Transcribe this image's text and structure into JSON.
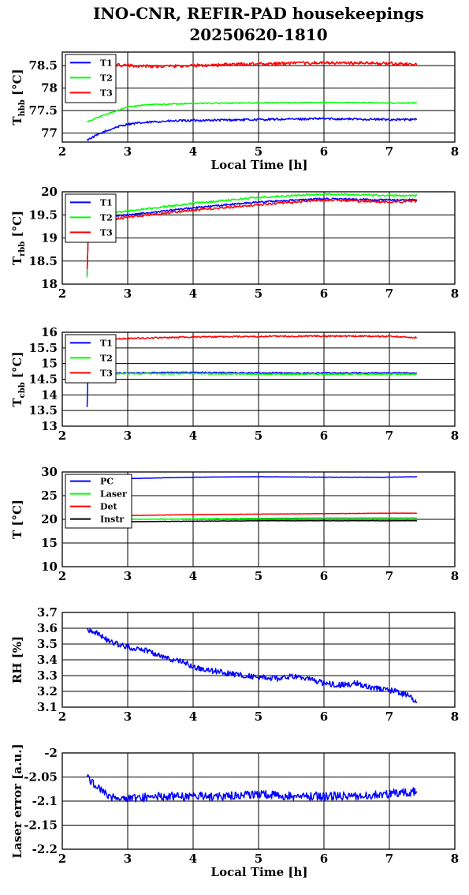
{
  "title": {
    "line1": "INO-CNR, REFIR-PAD housekeepings",
    "line2": "20250620-1810"
  },
  "chart_data": [
    {
      "type": "line",
      "ylabel_main": "T",
      "ylabel_sub": "hbb",
      "ylabel_unit": " [°C]",
      "xlabel": "Local Time [h]",
      "xlim": [
        2,
        8
      ],
      "ylim": [
        76.8,
        78.8
      ],
      "xticks": [
        "2",
        "3",
        "4",
        "5",
        "6",
        "7",
        "8"
      ],
      "yticks": [
        {
          "v": 77,
          "label": "77"
        },
        {
          "v": 77.5,
          "label": "77.5"
        },
        {
          "v": 78,
          "label": "78"
        },
        {
          "v": 78.5,
          "label": "78.5"
        }
      ],
      "grid": true,
      "legend": "top-left",
      "series": [
        {
          "name": "T1",
          "color": "#0000ff",
          "x": [
            2.38,
            2.6,
            2.8,
            3.0,
            3.5,
            4.0,
            5.0,
            6.0,
            7.0,
            7.42
          ],
          "y": [
            76.85,
            77.0,
            77.12,
            77.2,
            77.26,
            77.28,
            77.3,
            77.32,
            77.3,
            77.3
          ],
          "noise": 0.025
        },
        {
          "name": "T2",
          "color": "#00ff00",
          "x": [
            2.38,
            2.6,
            2.8,
            3.0,
            3.3,
            4.0,
            5.0,
            6.0,
            7.0,
            7.42
          ],
          "y": [
            77.25,
            77.38,
            77.48,
            77.58,
            77.63,
            77.66,
            77.67,
            77.68,
            77.67,
            77.67
          ],
          "noise": 0.012
        },
        {
          "name": "T3",
          "color": "#ff0000",
          "x": [
            2.5,
            2.8,
            3.0,
            3.5,
            4.0,
            5.0,
            6.0,
            7.0,
            7.42
          ],
          "y": [
            78.55,
            78.52,
            78.5,
            78.48,
            78.5,
            78.54,
            78.56,
            78.55,
            78.52
          ],
          "noise": 0.035
        }
      ]
    },
    {
      "type": "line",
      "ylabel_main": "T",
      "ylabel_sub": "rbb",
      "ylabel_unit": " [°C]",
      "xlabel": "",
      "xlim": [
        2,
        8
      ],
      "ylim": [
        18,
        20
      ],
      "xticks": [
        "2",
        "3",
        "4",
        "5",
        "6",
        "7",
        "8"
      ],
      "yticks": [
        {
          "v": 18,
          "label": "18"
        },
        {
          "v": 18.5,
          "label": "18.5"
        },
        {
          "v": 19,
          "label": "19"
        },
        {
          "v": 19.5,
          "label": "19.5"
        },
        {
          "v": 20,
          "label": "20"
        }
      ],
      "grid": true,
      "legend": "top-left",
      "series": [
        {
          "name": "T1",
          "color": "#0000ff",
          "x": [
            2.38,
            2.4,
            2.42,
            2.7,
            3.0,
            4.0,
            5.0,
            6.0,
            7.0,
            7.42
          ],
          "y": [
            18.2,
            19.3,
            19.42,
            19.45,
            19.5,
            19.65,
            19.78,
            19.85,
            19.82,
            19.83
          ],
          "noise": 0.02
        },
        {
          "name": "T2",
          "color": "#00ff00",
          "x": [
            2.38,
            2.4,
            2.42,
            2.7,
            3.0,
            4.0,
            5.0,
            6.0,
            7.0,
            7.42
          ],
          "y": [
            18.15,
            19.4,
            19.5,
            19.55,
            19.58,
            19.75,
            19.88,
            19.95,
            19.92,
            19.92
          ],
          "noise": 0.02
        },
        {
          "name": "T3",
          "color": "#ff0000",
          "x": [
            2.38,
            2.4,
            2.42,
            2.7,
            3.0,
            4.0,
            5.0,
            6.0,
            7.0,
            7.42
          ],
          "y": [
            18.3,
            19.2,
            19.35,
            19.4,
            19.45,
            19.6,
            19.72,
            19.82,
            19.78,
            19.8
          ],
          "noise": 0.025
        }
      ]
    },
    {
      "type": "line",
      "ylabel_main": "T",
      "ylabel_sub": "cbb",
      "ylabel_unit": " [°C]",
      "xlabel": "",
      "xlim": [
        2,
        8
      ],
      "ylim": [
        13,
        16
      ],
      "xticks": [
        "2",
        "3",
        "4",
        "5",
        "6",
        "7",
        "8"
      ],
      "yticks": [
        {
          "v": 13,
          "label": "13"
        },
        {
          "v": 13.5,
          "label": "13.5"
        },
        {
          "v": 14,
          "label": "14"
        },
        {
          "v": 14.5,
          "label": "14.5"
        },
        {
          "v": 15,
          "label": "15"
        },
        {
          "v": 15.5,
          "label": "15.5"
        },
        {
          "v": 16,
          "label": "16"
        }
      ],
      "grid": true,
      "legend": "top-left",
      "series": [
        {
          "name": "T1",
          "color": "#0000ff",
          "x": [
            2.38,
            2.39,
            2.41,
            2.5,
            3.0,
            4.0,
            5.0,
            6.0,
            7.0,
            7.42
          ],
          "y": [
            13.6,
            14.5,
            14.65,
            14.7,
            14.7,
            14.72,
            14.7,
            14.7,
            14.7,
            14.7
          ],
          "noise": 0.02
        },
        {
          "name": "T2",
          "color": "#00ff00",
          "x": [
            2.38,
            2.39,
            2.41,
            2.5,
            3.0,
            4.0,
            5.0,
            6.0,
            7.0,
            7.42
          ],
          "y": [
            14.4,
            14.6,
            14.65,
            14.68,
            14.68,
            14.68,
            14.66,
            14.66,
            14.66,
            14.66
          ],
          "noise": 0.02
        },
        {
          "name": "T3",
          "color": "#ff0000",
          "x": [
            2.5,
            3.0,
            4.0,
            5.0,
            6.0,
            7.0,
            7.42
          ],
          "y": [
            15.75,
            15.8,
            15.85,
            15.87,
            15.88,
            15.87,
            15.83
          ],
          "noise": 0.025
        }
      ]
    },
    {
      "type": "line",
      "ylabel_main": "T [°C]",
      "ylabel_sub": "",
      "ylabel_unit": "",
      "xlabel": "",
      "xlim": [
        2,
        8
      ],
      "ylim": [
        10,
        30
      ],
      "xticks": [
        "2",
        "3",
        "4",
        "5",
        "6",
        "7",
        "8"
      ],
      "yticks": [
        {
          "v": 10,
          "label": "10"
        },
        {
          "v": 15,
          "label": "15"
        },
        {
          "v": 20,
          "label": "20"
        },
        {
          "v": 25,
          "label": "25"
        },
        {
          "v": 30,
          "label": "30"
        }
      ],
      "grid": true,
      "legend": "top-left",
      "series": [
        {
          "name": "PC",
          "color": "#0000ff",
          "x": [
            2.4,
            3.0,
            4.0,
            5.0,
            6.0,
            7.0,
            7.42
          ],
          "y": [
            28.3,
            28.6,
            28.9,
            29.0,
            28.9,
            28.9,
            29.0
          ],
          "noise": 0.03
        },
        {
          "name": "Laser",
          "color": "#00ff00",
          "x": [
            2.4,
            3.0,
            4.0,
            5.0,
            6.0,
            7.0,
            7.42
          ],
          "y": [
            19.8,
            20.0,
            20.1,
            20.2,
            20.3,
            20.3,
            20.3
          ],
          "noise": 0.05
        },
        {
          "name": "Det",
          "color": "#ff0000",
          "x": [
            2.4,
            3.0,
            4.0,
            5.0,
            6.0,
            7.0,
            7.42
          ],
          "y": [
            20.5,
            20.8,
            21.0,
            21.1,
            21.2,
            21.3,
            21.3
          ],
          "noise": 0.03
        },
        {
          "name": "Instr",
          "color": "#000000",
          "x": [
            2.4,
            3.0,
            4.0,
            5.0,
            6.0,
            7.0,
            7.42
          ],
          "y": [
            19.3,
            19.5,
            19.6,
            19.7,
            19.7,
            19.7,
            19.7
          ],
          "noise": 0.04
        }
      ]
    },
    {
      "type": "line",
      "ylabel_main": "RH [%]",
      "ylabel_sub": "",
      "ylabel_unit": "",
      "xlabel": "",
      "xlim": [
        2,
        8
      ],
      "ylim": [
        3.1,
        3.7
      ],
      "xticks": [
        "2",
        "3",
        "4",
        "5",
        "6",
        "7",
        "8"
      ],
      "yticks": [
        {
          "v": 3.1,
          "label": "3.1"
        },
        {
          "v": 3.2,
          "label": "3.2"
        },
        {
          "v": 3.3,
          "label": "3.3"
        },
        {
          "v": 3.4,
          "label": "3.4"
        },
        {
          "v": 3.5,
          "label": "3.5"
        },
        {
          "v": 3.6,
          "label": "3.6"
        },
        {
          "v": 3.7,
          "label": "3.7"
        }
      ],
      "grid": true,
      "legend": "none",
      "series": [
        {
          "name": "",
          "color": "#0000ff",
          "x": [
            2.38,
            2.5,
            2.7,
            3.0,
            3.3,
            3.6,
            3.9,
            4.0,
            4.3,
            4.6,
            5.0,
            5.3,
            5.6,
            5.9,
            6.2,
            6.5,
            6.8,
            7.1,
            7.3,
            7.42
          ],
          "y": [
            3.59,
            3.58,
            3.52,
            3.48,
            3.46,
            3.41,
            3.38,
            3.35,
            3.33,
            3.31,
            3.29,
            3.28,
            3.3,
            3.26,
            3.24,
            3.25,
            3.22,
            3.2,
            3.17,
            3.13
          ],
          "noise": 0.018
        }
      ]
    },
    {
      "type": "line",
      "ylabel_main": "Laser error [a.u.]",
      "ylabel_sub": "",
      "ylabel_unit": "",
      "xlabel": "Local Time [h]",
      "xlim": [
        2,
        8
      ],
      "ylim": [
        -2.2,
        -2.0
      ],
      "xticks": [
        "2",
        "3",
        "4",
        "5",
        "6",
        "7",
        "8"
      ],
      "yticks": [
        {
          "v": -2.2,
          "label": "-2.2"
        },
        {
          "v": -2.15,
          "label": "-2.15"
        },
        {
          "v": -2.1,
          "label": "-2.1"
        },
        {
          "v": -2.05,
          "label": "-2.05"
        },
        {
          "v": -2.0,
          "label": "-2"
        }
      ],
      "grid": true,
      "legend": "none",
      "series": [
        {
          "name": "",
          "color": "#0000ff",
          "x": [
            2.38,
            2.45,
            2.55,
            2.7,
            3.0,
            3.5,
            4.0,
            4.5,
            5.0,
            5.5,
            6.0,
            6.5,
            7.0,
            7.42
          ],
          "y": [
            -2.05,
            -2.06,
            -2.07,
            -2.09,
            -2.095,
            -2.09,
            -2.09,
            -2.09,
            -2.085,
            -2.09,
            -2.09,
            -2.09,
            -2.085,
            -2.08
          ],
          "noise": 0.009
        }
      ]
    }
  ]
}
